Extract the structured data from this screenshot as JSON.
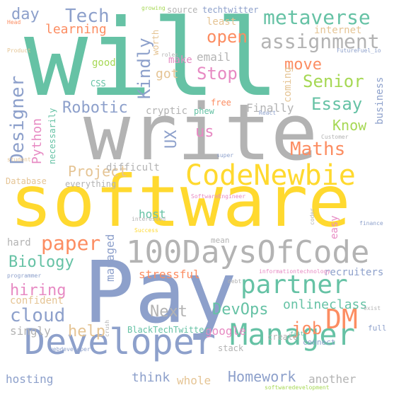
{
  "palette": {
    "teal": "#66c2a5",
    "orange": "#fc8d62",
    "blue": "#8da0cb",
    "pink": "#e78ac3",
    "green": "#a6d854",
    "yellow": "#ffd92f",
    "tan": "#e5c494",
    "gray": "#b3b3b3"
  },
  "words": [
    {
      "text": "will",
      "color": "teal",
      "vertical": false
    },
    {
      "text": "write",
      "color": "gray",
      "vertical": false
    },
    {
      "text": "software",
      "color": "yellow",
      "vertical": false
    },
    {
      "text": "Pay",
      "color": "blue",
      "vertical": false
    },
    {
      "text": "100DaysOfCode",
      "color": "gray",
      "vertical": false
    },
    {
      "text": "CodeNewbie",
      "color": "yellow",
      "vertical": false
    },
    {
      "text": "Developer",
      "color": "blue",
      "vertical": false
    },
    {
      "text": "Manager",
      "color": "teal",
      "vertical": false
    },
    {
      "text": "partner",
      "color": "teal",
      "vertical": false
    },
    {
      "text": "DM",
      "color": "orange",
      "vertical": false
    },
    {
      "text": "metaverse",
      "color": "teal",
      "vertical": false
    },
    {
      "text": "assignment",
      "color": "gray",
      "vertical": false
    },
    {
      "text": "Senior",
      "color": "green",
      "vertical": false
    },
    {
      "text": "Essay",
      "color": "teal",
      "vertical": false
    },
    {
      "text": "Know",
      "color": "green",
      "vertical": false
    },
    {
      "text": "Maths",
      "color": "orange",
      "vertical": false
    },
    {
      "text": "Tech",
      "color": "blue",
      "vertical": false
    },
    {
      "text": "day",
      "color": "blue",
      "vertical": false
    },
    {
      "text": "learning",
      "color": "orange",
      "vertical": false
    },
    {
      "text": "open",
      "color": "orange",
      "vertical": false
    },
    {
      "text": "Stop",
      "color": "pink",
      "vertical": false
    },
    {
      "text": "move",
      "color": "orange",
      "vertical": false
    },
    {
      "text": "Robotic",
      "color": "blue",
      "vertical": false
    },
    {
      "text": "Designer",
      "color": "blue",
      "vertical": true
    },
    {
      "text": "Kindly",
      "color": "blue",
      "vertical": true
    },
    {
      "text": "Python",
      "color": "pink",
      "vertical": true
    },
    {
      "text": "Project",
      "color": "tan",
      "vertical": false
    },
    {
      "text": "UX",
      "color": "blue",
      "vertical": true
    },
    {
      "text": "us",
      "color": "pink",
      "vertical": false
    },
    {
      "text": "paper",
      "color": "orange",
      "vertical": false
    },
    {
      "text": "Biology",
      "color": "teal",
      "vertical": false
    },
    {
      "text": "hiring",
      "color": "pink",
      "vertical": false
    },
    {
      "text": "cloud",
      "color": "blue",
      "vertical": false
    },
    {
      "text": "help",
      "color": "tan",
      "vertical": false
    },
    {
      "text": "Next",
      "color": "gray",
      "vertical": false
    },
    {
      "text": "DevOps",
      "color": "teal",
      "vertical": false
    },
    {
      "text": "job",
      "color": "orange",
      "vertical": false
    },
    {
      "text": "onlineclass",
      "color": "teal",
      "vertical": false
    },
    {
      "text": "google",
      "color": "pink",
      "vertical": false
    },
    {
      "text": "Homework",
      "color": "blue",
      "vertical": false
    },
    {
      "text": "hosting",
      "color": "blue",
      "vertical": false
    },
    {
      "text": "think",
      "color": "blue",
      "vertical": false
    },
    {
      "text": "whole",
      "color": "tan",
      "vertical": false
    },
    {
      "text": "another",
      "color": "gray",
      "vertical": false
    },
    {
      "text": "singly",
      "color": "gray",
      "vertical": false
    },
    {
      "text": "confident",
      "color": "tan",
      "vertical": false
    },
    {
      "text": "hard",
      "color": "gray",
      "vertical": false
    },
    {
      "text": "stressful",
      "color": "orange",
      "vertical": false
    },
    {
      "text": "host",
      "color": "teal",
      "vertical": false
    },
    {
      "text": "difficult",
      "color": "gray",
      "vertical": false
    },
    {
      "text": "managed",
      "color": "blue",
      "vertical": true
    },
    {
      "text": "email",
      "color": "gray",
      "vertical": false
    },
    {
      "text": "got",
      "color": "tan",
      "vertical": false
    },
    {
      "text": "make",
      "color": "pink",
      "vertical": false
    },
    {
      "text": "least",
      "color": "tan",
      "vertical": false
    },
    {
      "text": "internet",
      "color": "tan",
      "vertical": false
    },
    {
      "text": "coming",
      "color": "tan",
      "vertical": true
    },
    {
      "text": "business",
      "color": "blue",
      "vertical": true
    },
    {
      "text": "Finally",
      "color": "gray",
      "vertical": false
    },
    {
      "text": "cryptic",
      "color": "gray",
      "vertical": false
    },
    {
      "text": "phew",
      "color": "teal",
      "vertical": false
    },
    {
      "text": "free",
      "color": "orange",
      "vertical": false
    },
    {
      "text": "good",
      "color": "green",
      "vertical": false
    },
    {
      "text": "CSS",
      "color": "teal",
      "vertical": false
    },
    {
      "text": "source",
      "color": "gray",
      "vertical": false
    },
    {
      "text": "techtwitter",
      "color": "blue",
      "vertical": false
    },
    {
      "text": "worth",
      "color": "tan",
      "vertical": true
    },
    {
      "text": "necessarily",
      "color": "teal",
      "vertical": true
    },
    {
      "text": "Database",
      "color": "tan",
      "vertical": false
    },
    {
      "text": "everything",
      "color": "gray",
      "vertical": false
    },
    {
      "text": "BlackTechTwitter",
      "color": "teal",
      "vertical": false
    },
    {
      "text": "create",
      "color": "gray",
      "vertical": false
    },
    {
      "text": "stack",
      "color": "gray",
      "vertical": false
    },
    {
      "text": "connect",
      "color": "blue",
      "vertical": false
    },
    {
      "text": "full",
      "color": "blue",
      "vertical": false
    },
    {
      "text": "recruiters",
      "color": "blue",
      "vertical": false
    },
    {
      "text": "easy",
      "color": "pink",
      "vertical": true
    },
    {
      "text": "mean",
      "color": "gray",
      "vertical": false
    },
    {
      "text": "growing",
      "color": "green",
      "vertical": false
    },
    {
      "text": "Head",
      "color": "orange",
      "vertical": false
    },
    {
      "text": "Product",
      "color": "tan",
      "vertical": false
    },
    {
      "text": "roles",
      "color": "gray",
      "vertical": false
    },
    {
      "text": "FutureFuel_io",
      "color": "blue",
      "vertical": false
    },
    {
      "text": "student",
      "color": "tan",
      "vertical": false
    },
    {
      "text": "Customer",
      "color": "gray",
      "vertical": false
    },
    {
      "text": "super",
      "color": "blue",
      "vertical": false
    },
    {
      "text": "React",
      "color": "blue",
      "vertical": false
    },
    {
      "text": "SoftwareEngineer",
      "color": "pink",
      "vertical": false
    },
    {
      "text": "interested",
      "color": "gray",
      "vertical": false
    },
    {
      "text": "Success",
      "color": "yellow",
      "vertical": false
    },
    {
      "text": "coder",
      "color": "gray",
      "vertical": true
    },
    {
      "text": "finance",
      "color": "blue",
      "vertical": false
    },
    {
      "text": "programmer",
      "color": "blue",
      "vertical": false
    },
    {
      "text": "informationtechnology",
      "color": "pink",
      "vertical": false
    },
    {
      "text": "debt",
      "color": "gray",
      "vertical": false
    },
    {
      "text": "crush",
      "color": "gray",
      "vertical": true
    },
    {
      "text": "fast",
      "color": "teal",
      "vertical": false
    },
    {
      "text": "exist",
      "color": "gray",
      "vertical": false
    },
    {
      "text": "webdeveloper",
      "color": "blue",
      "vertical": false
    },
    {
      "text": "softwaredevelopment",
      "color": "green",
      "vertical": false
    }
  ]
}
